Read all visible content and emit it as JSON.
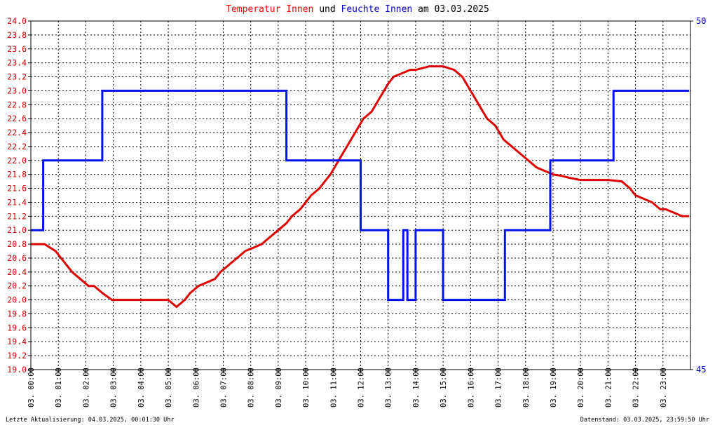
{
  "title": {
    "parts": [
      {
        "text": "Temperatur Innen",
        "color": "#ff0000"
      },
      {
        "text": " und ",
        "color": "#000000"
      },
      {
        "text": "Feuchte Innen",
        "color": "#0000cc"
      },
      {
        "text": " am 03.03.2025",
        "color": "#000000"
      }
    ]
  },
  "footer": {
    "left": "Letzte Aktualisierung: 04.03.2025, 00:01:30 Uhr",
    "right": "Datenstand: 03.03.2025, 23:59:50 Uhr"
  },
  "colors": {
    "temperature": "#dd0000",
    "humidity": "#0011ee",
    "left_axis_text": "#cc0000",
    "right_axis_text": "#0000cc",
    "grid": "#000000",
    "background": "#ffffff"
  },
  "chart_data": {
    "type": "line",
    "grid": true,
    "x_unit": "hours of day",
    "x_range": [
      0,
      24
    ],
    "x_tick_labels": [
      "03. 00:00",
      "03. 01:00",
      "03. 02:00",
      "03. 03:00",
      "03. 04:00",
      "03. 05:00",
      "03. 06:00",
      "03. 07:00",
      "03. 08:00",
      "03. 09:00",
      "03. 10:00",
      "03. 11:00",
      "03. 12:00",
      "03. 13:00",
      "03. 14:00",
      "03. 15:00",
      "03. 16:00",
      "03. 17:00",
      "03. 18:00",
      "03. 19:00",
      "03. 20:00",
      "03. 21:00",
      "03. 22:00",
      "03. 23:00"
    ],
    "y_left": {
      "ylim": [
        19.0,
        24.0
      ],
      "ticks": [
        "19.0",
        "19.2",
        "19.4",
        "19.6",
        "19.8",
        "20.0",
        "20.2",
        "20.4",
        "20.6",
        "20.8",
        "21.0",
        "21.2",
        "21.4",
        "21.6",
        "21.8",
        "22.0",
        "22.2",
        "22.4",
        "22.6",
        "22.8",
        "23.0",
        "23.2",
        "23.4",
        "23.6",
        "23.8",
        "24.0"
      ]
    },
    "y_right": {
      "ylim": [
        45,
        50
      ],
      "ticks": [
        "45",
        "50"
      ]
    },
    "series": [
      {
        "name": "Temperatur Innen",
        "axis": "left",
        "x": [
          0.0,
          0.5,
          0.7,
          0.9,
          1.1,
          1.3,
          1.5,
          1.8,
          2.1,
          2.3,
          2.6,
          2.95,
          3.2,
          3.8,
          4.2,
          4.6,
          5.0,
          5.3,
          5.6,
          5.8,
          6.1,
          6.4,
          6.7,
          6.9,
          7.2,
          7.5,
          7.8,
          8.1,
          8.4,
          8.7,
          9.0,
          9.3,
          9.5,
          9.8,
          10.0,
          10.2,
          10.5,
          10.7,
          10.9,
          11.2,
          11.5,
          11.8,
          12.1,
          12.4,
          12.7,
          13.0,
          13.2,
          13.5,
          13.8,
          14.0,
          14.5,
          15.0,
          15.4,
          15.7,
          16.0,
          16.3,
          16.6,
          16.9,
          17.2,
          17.5,
          17.8,
          18.1,
          18.4,
          18.7,
          19.0,
          19.3,
          19.6,
          20.0,
          20.5,
          21.0,
          21.5,
          21.8,
          22.0,
          22.3,
          22.6,
          22.9,
          23.1,
          23.4,
          23.7,
          23.95
        ],
        "values": [
          20.8,
          20.8,
          20.75,
          20.7,
          20.6,
          20.5,
          20.4,
          20.3,
          20.2,
          20.2,
          20.1,
          20.0,
          20.0,
          20.0,
          20.0,
          20.0,
          20.0,
          19.9,
          20.0,
          20.1,
          20.2,
          20.25,
          20.3,
          20.4,
          20.5,
          20.6,
          20.7,
          20.75,
          20.8,
          20.9,
          21.0,
          21.1,
          21.2,
          21.3,
          21.4,
          21.5,
          21.6,
          21.7,
          21.8,
          22.0,
          22.2,
          22.4,
          22.6,
          22.7,
          22.9,
          23.1,
          23.2,
          23.25,
          23.3,
          23.3,
          23.35,
          23.35,
          23.3,
          23.2,
          23.0,
          22.8,
          22.6,
          22.5,
          22.3,
          22.2,
          22.1,
          22.0,
          21.9,
          21.85,
          21.8,
          21.78,
          21.75,
          21.72,
          21.72,
          21.72,
          21.7,
          21.6,
          21.5,
          21.45,
          21.4,
          21.3,
          21.3,
          21.25,
          21.2,
          21.2
        ]
      },
      {
        "name": "Feuchte Innen",
        "axis": "right",
        "x": [
          0.0,
          0.45,
          0.45,
          0.6,
          0.6,
          2.6,
          2.6,
          9.3,
          9.3,
          12.0,
          12.0,
          13.0,
          13.0,
          13.55,
          13.55,
          13.7,
          13.7,
          14.0,
          14.0,
          15.0,
          15.0,
          16.2,
          16.2,
          17.25,
          17.25,
          18.9,
          18.9,
          21.2,
          21.2,
          21.3,
          21.3,
          23.95
        ],
        "values": [
          47,
          47,
          48,
          48,
          48,
          48,
          49,
          49,
          48,
          48,
          47,
          47,
          46,
          46,
          47,
          47,
          46,
          46,
          47,
          47,
          46,
          46,
          46,
          46,
          47,
          47,
          48,
          48,
          49,
          49,
          49,
          49
        ]
      }
    ]
  }
}
